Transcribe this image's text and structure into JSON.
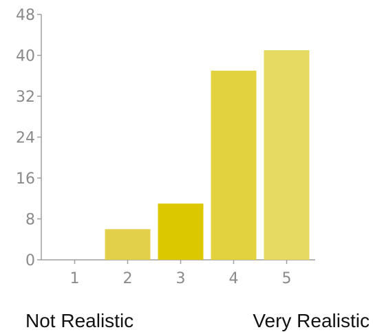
{
  "chart_data": {
    "type": "bar",
    "categories": [
      "1",
      "2",
      "3",
      "4",
      "5"
    ],
    "values": [
      0,
      6,
      11,
      37,
      41
    ],
    "bar_colors": [
      "#e2d04a",
      "#e2d04a",
      "#dcc800",
      "#e2d23e",
      "#e6da62"
    ],
    "title": "",
    "xlabel": "",
    "ylabel": "",
    "ylim": [
      0,
      48
    ],
    "y_ticks": [
      0,
      8,
      16,
      24,
      32,
      40,
      48
    ],
    "grid": false,
    "legend": "none",
    "end_labels": {
      "low": "Not Realistic",
      "high": "Very Realistic"
    }
  },
  "colors": {
    "axis": "#9e9e9e",
    "tick_text": "#8a8a8a"
  }
}
